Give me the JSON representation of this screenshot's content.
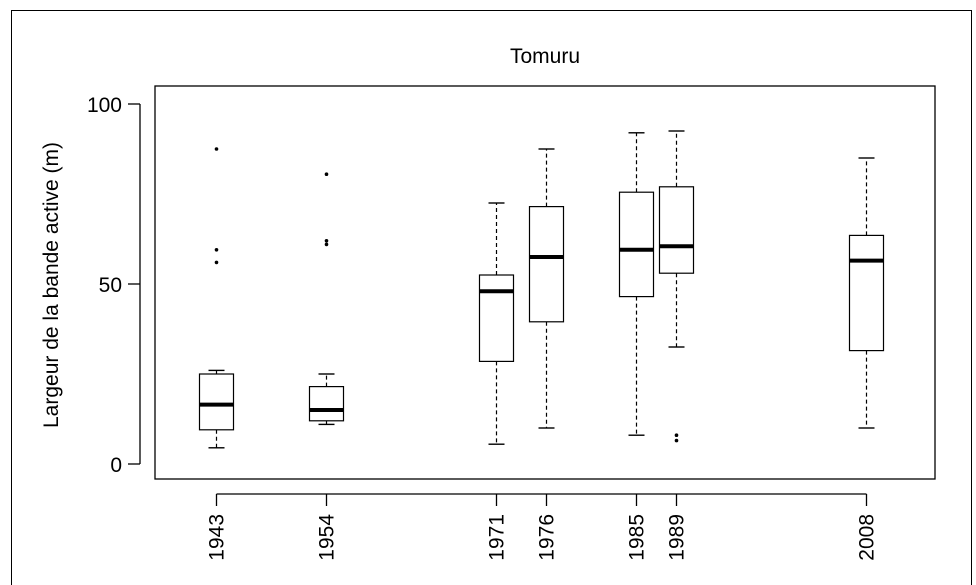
{
  "chart_data": {
    "type": "boxplot",
    "title": "Tomuru",
    "xlabel": "",
    "ylabel": "Largeur de la bande active (m)",
    "ylim": [
      0,
      100
    ],
    "yticks": [
      0,
      50,
      100
    ],
    "grid": false,
    "categories": [
      "1943",
      "1954",
      "1971",
      "1976",
      "1985",
      "1989",
      "2008"
    ],
    "x": [
      1943,
      1954,
      1971,
      1976,
      1985,
      1989,
      2008
    ],
    "boxes": [
      {
        "year": "1943",
        "whisker_low": 4.5,
        "q1": 9.5,
        "median": 16.5,
        "q3": 25.0,
        "whisker_high": 26.0,
        "outliers": [
          56.0,
          59.5,
          87.5
        ]
      },
      {
        "year": "1954",
        "whisker_low": 11.0,
        "q1": 12.0,
        "median": 15.0,
        "q3": 21.5,
        "whisker_high": 25.0,
        "outliers": [
          61.0,
          62.0,
          80.5
        ]
      },
      {
        "year": "1971",
        "whisker_low": 5.5,
        "q1": 28.5,
        "median": 48.0,
        "q3": 52.5,
        "whisker_high": 72.5,
        "outliers": []
      },
      {
        "year": "1976",
        "whisker_low": 10.0,
        "q1": 39.5,
        "median": 57.5,
        "q3": 71.5,
        "whisker_high": 87.5,
        "outliers": []
      },
      {
        "year": "1985",
        "whisker_low": 8.0,
        "q1": 46.5,
        "median": 59.5,
        "q3": 75.5,
        "whisker_high": 92.0,
        "outliers": []
      },
      {
        "year": "1989",
        "whisker_low": 32.5,
        "q1": 53.0,
        "median": 60.5,
        "q3": 77.0,
        "whisker_high": 92.5,
        "outliers": [
          6.5,
          8.0
        ]
      },
      {
        "year": "2008",
        "whisker_low": 10.0,
        "q1": 31.5,
        "median": 56.5,
        "q3": 63.5,
        "whisker_high": 85.0,
        "outliers": []
      }
    ]
  }
}
